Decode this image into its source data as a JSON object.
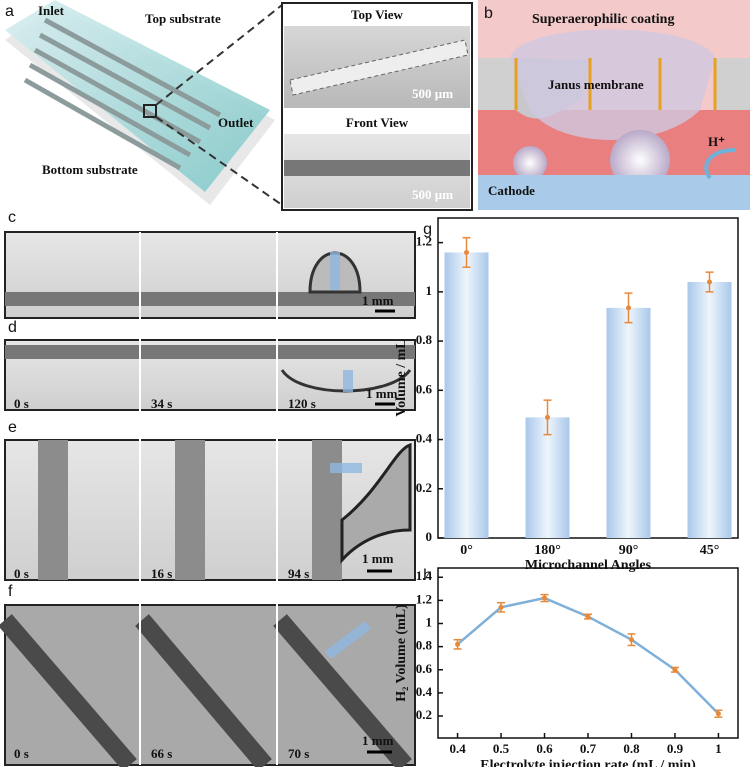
{
  "panel_a": {
    "label": "a",
    "inlet": "Inlet",
    "top_substrate": "Top substrate",
    "outlet": "Outlet",
    "bottom_substrate": "Bottom substrate",
    "top_view": "Top View",
    "front_view": "Front View",
    "scale_top": "500 µm",
    "scale_front": "500 µm"
  },
  "panel_b": {
    "label": "b",
    "coating": "Superaerophilic coating",
    "membrane": "Janus  membrane",
    "proton": "H⁺",
    "cathode": "Cathode"
  },
  "panel_c": {
    "label": "c",
    "scale": "1 mm"
  },
  "panel_d": {
    "label": "d",
    "times": [
      "0 s",
      "34 s",
      "120 s"
    ],
    "scale": "1 mm"
  },
  "panel_e": {
    "label": "e",
    "times": [
      "0 s",
      "16 s",
      "94 s"
    ],
    "scale": "1 mm"
  },
  "panel_f": {
    "label": "f",
    "times": [
      "0 s",
      "66 s",
      "70 s"
    ],
    "scale": "1 mm"
  },
  "chart_data": [
    {
      "type": "bar",
      "panel_label": "g",
      "y_label": "Volume / mL",
      "x_label": "Microchannel Angles",
      "categories": [
        "0°",
        "180°",
        "90°",
        "45°"
      ],
      "values": [
        1.16,
        0.49,
        0.935,
        1.04
      ],
      "errors": [
        0.06,
        0.07,
        0.06,
        0.04
      ],
      "color": "#a9c8ea",
      "error_color": "#e8893a",
      "ylim": [
        0,
        1.3
      ],
      "yticks": [
        0,
        0.2,
        0.4,
        0.6,
        0.8,
        1,
        1.2
      ]
    },
    {
      "type": "line",
      "panel_label": "h",
      "y_label": "H₂ Volume (mL)",
      "x_label": "Electrolyte injection rate (mL / min)",
      "x": [
        0.4,
        0.5,
        0.6,
        0.7,
        0.8,
        0.9,
        1
      ],
      "values": [
        0.82,
        1.14,
        1.22,
        1.06,
        0.86,
        0.6,
        0.22
      ],
      "errors": [
        0.04,
        0.04,
        0.03,
        0.02,
        0.05,
        0.02,
        0.03
      ],
      "color": "#7fb0d9",
      "error_color": "#e8893a",
      "xlim": [
        0.355,
        1.045
      ],
      "xticks": [
        0.4,
        0.5,
        0.6,
        0.7,
        0.8,
        0.9,
        1
      ],
      "ylim": [
        0.01,
        1.48
      ],
      "yticks": [
        0.2,
        0.4,
        0.6,
        0.8,
        1,
        1.2,
        1.4
      ]
    }
  ]
}
